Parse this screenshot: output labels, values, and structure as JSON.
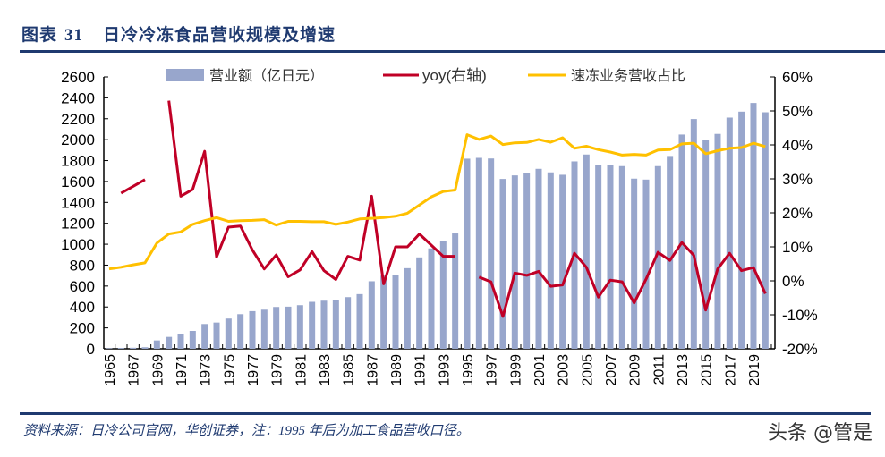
{
  "header": {
    "figure_label": "图表",
    "figure_number": "31",
    "title": "日冷冷冻食品营收规模及增速"
  },
  "footer": {
    "source": "资料来源：日冷公司官网，华创证券，注：1995 年后为加工食品营收口径。",
    "watermark": "头条 @管是"
  },
  "chart_data": {
    "type": "bar+line",
    "title": "",
    "legend": [
      "营业额（亿日元）",
      "yoy(右轴)",
      "速冻业务营收占比"
    ],
    "legend_placement": "top",
    "x": [
      1965,
      1966,
      1967,
      1968,
      1969,
      1970,
      1971,
      1972,
      1973,
      1974,
      1975,
      1976,
      1977,
      1978,
      1979,
      1980,
      1981,
      1982,
      1983,
      1984,
      1985,
      1986,
      1987,
      1988,
      1989,
      1990,
      1991,
      1992,
      1993,
      1994,
      1995,
      1996,
      1997,
      1998,
      1999,
      2000,
      2001,
      2002,
      2003,
      2004,
      2005,
      2006,
      2007,
      2008,
      2009,
      2010,
      2011,
      2012,
      2013,
      2014,
      2015,
      2016,
      2017,
      2018,
      2019,
      2020
    ],
    "x_tick_labels": [
      "1965",
      "1967",
      "1969",
      "1971",
      "1973",
      "1975",
      "1977",
      "1979",
      "1981",
      "1983",
      "1985",
      "1987",
      "1989",
      "1991",
      "1993",
      "1995",
      "1997",
      "1999",
      "2001",
      "2003",
      "2005",
      "2007",
      "2009",
      "2011",
      "2013",
      "2015",
      "2017",
      "2019"
    ],
    "left_axis": {
      "range": [
        0,
        2600
      ],
      "ticks": [
        "0",
        "200",
        "400",
        "600",
        "800",
        "1000",
        "1200",
        "1400",
        "1600",
        "1800",
        "2000",
        "2200",
        "2400",
        "2600"
      ]
    },
    "right_axis": {
      "range": [
        -20,
        60
      ],
      "ticks": [
        "-20%",
        "-10%",
        "0%",
        "10%",
        "20%",
        "30%",
        "40%",
        "50%",
        "60%"
      ]
    },
    "series": [
      {
        "name": "营业额（亿日元）",
        "type": "bar",
        "axis": "left",
        "color": "#98a6cc",
        "values": [
          5,
          8,
          10,
          15,
          80,
          114,
          143,
          171,
          237,
          251,
          289,
          331,
          360,
          374,
          400,
          403,
          417,
          449,
          460,
          463,
          494,
          523,
          646,
          700,
          703,
          771,
          874,
          960,
          1031,
          1103,
          1818,
          1826,
          1820,
          1624,
          1658,
          1678,
          1721,
          1687,
          1664,
          1792,
          1858,
          1758,
          1755,
          1747,
          1627,
          1618,
          1747,
          1844,
          2049,
          2197,
          1995,
          2055,
          2211,
          2268,
          2351,
          2262
        ]
      },
      {
        "name": "yoy(右轴)",
        "type": "line",
        "axis": "right",
        "unit": "%",
        "color": "#c00026",
        "values": [
          null,
          25.8,
          27.8,
          29.8,
          null,
          53.0,
          24.9,
          26.9,
          38.1,
          7.0,
          15.8,
          16.1,
          9.1,
          3.5,
          7.6,
          1.2,
          3.2,
          8.6,
          3.0,
          0.4,
          7.2,
          6.1,
          24.9,
          -0.9,
          10.0,
          10.0,
          13.8,
          10.5,
          7.2,
          7.2,
          null,
          1.1,
          -0.3,
          -10.5,
          2.3,
          1.6,
          2.8,
          -1.6,
          -1.2,
          8.1,
          4.0,
          -4.8,
          0.2,
          -0.3,
          -6.5,
          0.5,
          8.4,
          6.0,
          11.3,
          7.5,
          -8.6,
          3.5,
          8.1,
          3.0,
          3.9,
          -3.8
        ]
      },
      {
        "name": "速冻业务营收占比",
        "type": "line",
        "axis": "right",
        "unit": "%",
        "color": "#ffc000",
        "values": [
          3.5,
          4.0,
          4.7,
          5.3,
          11.1,
          13.8,
          14.4,
          16.6,
          17.7,
          18.6,
          17.5,
          17.7,
          17.8,
          18.0,
          16.4,
          17.5,
          17.5,
          17.4,
          17.4,
          16.6,
          17.3,
          18.2,
          18.4,
          18.6,
          19.0,
          19.9,
          22.3,
          24.7,
          26.3,
          26.7,
          43.0,
          41.6,
          42.6,
          40.1,
          40.6,
          40.7,
          41.6,
          40.8,
          42.1,
          39.0,
          39.6,
          38.6,
          37.9,
          37.0,
          37.2,
          37.0,
          38.5,
          38.6,
          40.3,
          40.5,
          37.4,
          38.3,
          39.0,
          39.2,
          40.5,
          39.5
        ]
      }
    ]
  }
}
